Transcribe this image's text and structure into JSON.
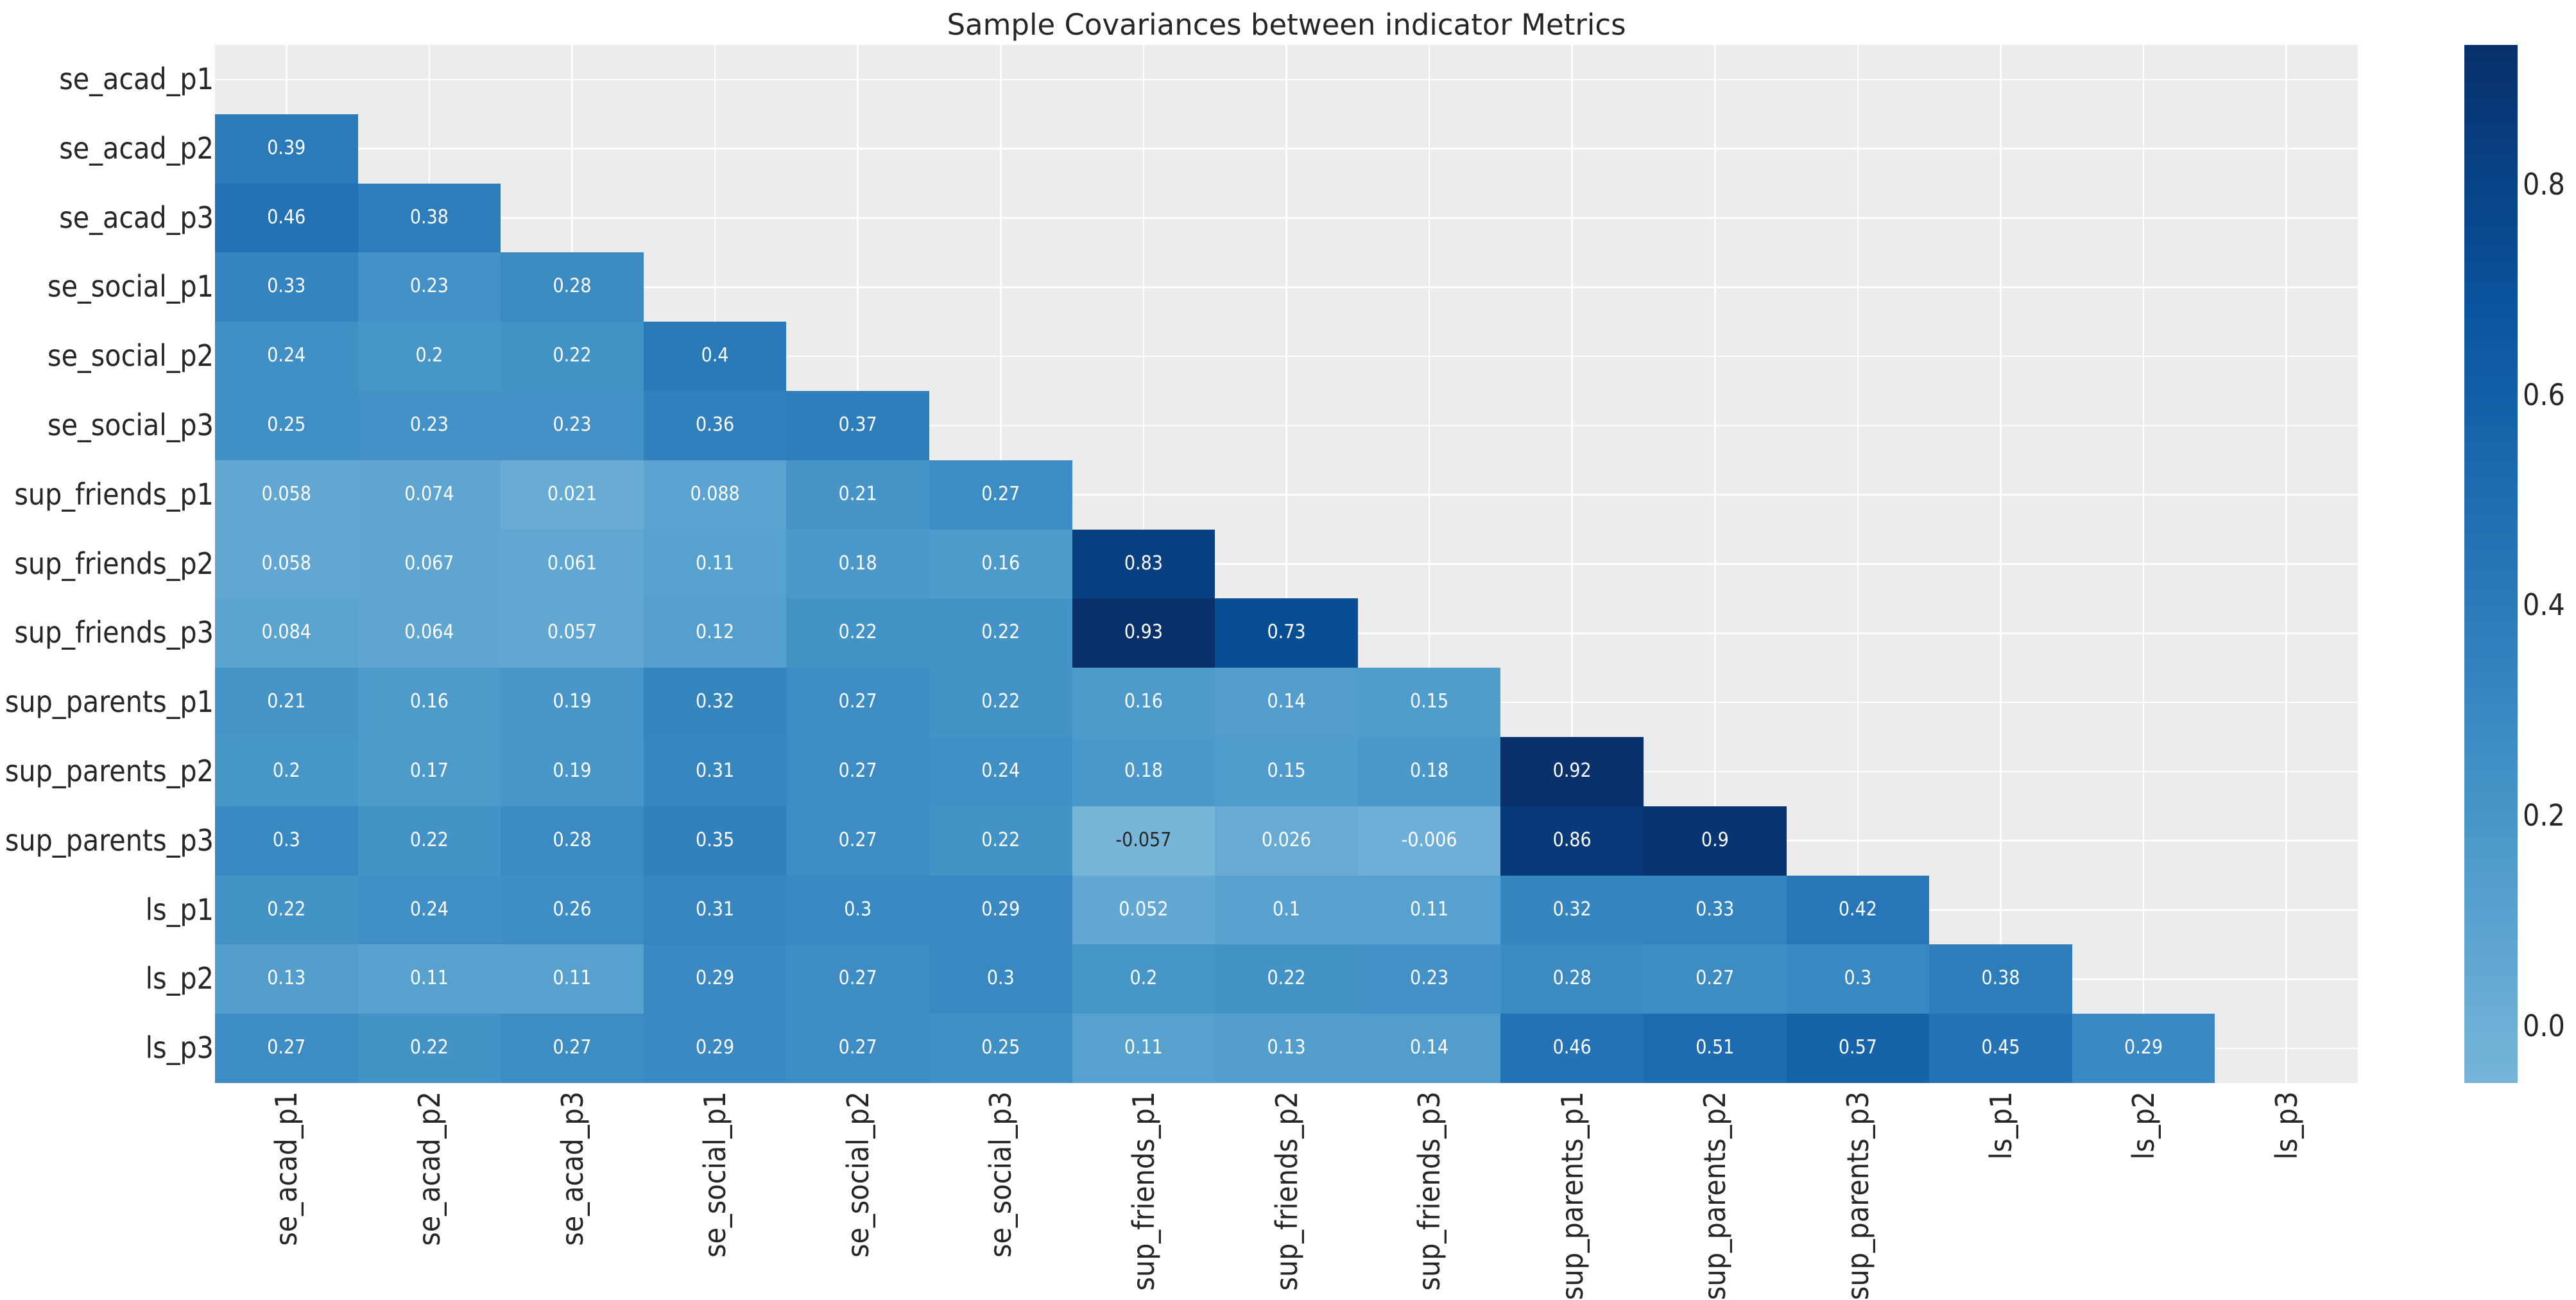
{
  "title": "Sample Covariances between indicator Metrics",
  "chart_data": {
    "type": "heatmap",
    "title": "Sample Covariances between indicator Metrics",
    "x_labels": [
      "se_acad_p1",
      "se_acad_p2",
      "se_acad_p3",
      "se_social_p1",
      "se_social_p2",
      "se_social_p3",
      "sup_friends_p1",
      "sup_friends_p2",
      "sup_friends_p3",
      "sup_parents_p1",
      "sup_parents_p2",
      "sup_parents_p3",
      "ls_p1",
      "ls_p2",
      "ls_p3"
    ],
    "y_labels": [
      "se_acad_p1",
      "se_acad_p2",
      "se_acad_p3",
      "se_social_p1",
      "se_social_p2",
      "se_social_p3",
      "sup_friends_p1",
      "sup_friends_p2",
      "sup_friends_p3",
      "sup_parents_p1",
      "sup_parents_p2",
      "sup_parents_p3",
      "ls_p1",
      "ls_p2",
      "ls_p3"
    ],
    "mask": "upper triangle including diagonal is hidden; only cells below the diagonal are drawn",
    "values_lower_triangle": [
      [],
      [
        0.39
      ],
      [
        0.46,
        0.38
      ],
      [
        0.33,
        0.23,
        0.28
      ],
      [
        0.24,
        0.2,
        0.22,
        0.4
      ],
      [
        0.25,
        0.23,
        0.23,
        0.36,
        0.37
      ],
      [
        0.058,
        0.074,
        0.021,
        0.088,
        0.21,
        0.27
      ],
      [
        0.058,
        0.067,
        0.061,
        0.11,
        0.18,
        0.16,
        0.83
      ],
      [
        0.084,
        0.064,
        0.057,
        0.12,
        0.22,
        0.22,
        0.93,
        0.73
      ],
      [
        0.21,
        0.16,
        0.19,
        0.32,
        0.27,
        0.22,
        0.16,
        0.14,
        0.15
      ],
      [
        0.2,
        0.17,
        0.19,
        0.31,
        0.27,
        0.24,
        0.18,
        0.15,
        0.18,
        0.92
      ],
      [
        0.3,
        0.22,
        0.28,
        0.35,
        0.27,
        0.22,
        -0.057,
        0.026,
        -0.006,
        0.86,
        0.9
      ],
      [
        0.22,
        0.24,
        0.26,
        0.31,
        0.3,
        0.29,
        0.052,
        0.1,
        0.11,
        0.32,
        0.33,
        0.42
      ],
      [
        0.13,
        0.11,
        0.11,
        0.29,
        0.27,
        0.3,
        0.2,
        0.22,
        0.23,
        0.28,
        0.27,
        0.3,
        0.38
      ],
      [
        0.27,
        0.22,
        0.27,
        0.29,
        0.27,
        0.25,
        0.11,
        0.13,
        0.14,
        0.46,
        0.51,
        0.57,
        0.45,
        0.29
      ]
    ],
    "annotation_format": "2 significant digits",
    "vmin": -0.057,
    "vmax": 0.93,
    "colormap": {
      "name": "Blues (truncated)",
      "stops": [
        "#77b5d9",
        "#5fa6d1",
        "#4997c9",
        "#3686c0",
        "#2575b7",
        "#1764ab",
        "#0a539e",
        "#084285",
        "#08306b"
      ]
    },
    "colorbar": {
      "position": "right",
      "tick_values": [
        0.0,
        0.2,
        0.4,
        0.6,
        0.8
      ],
      "tick_labels": [
        "0.0",
        "0.2",
        "0.4",
        "0.6",
        "0.8"
      ]
    },
    "grid": true,
    "legend_position": "none"
  },
  "style": {
    "figure_bg": "#ffffff",
    "axes_bg": "#ececec",
    "grid_color": "#ffffff",
    "text_color": "#262626",
    "annot_text_light": "#ffffff",
    "annot_text_dark": "#262626"
  }
}
